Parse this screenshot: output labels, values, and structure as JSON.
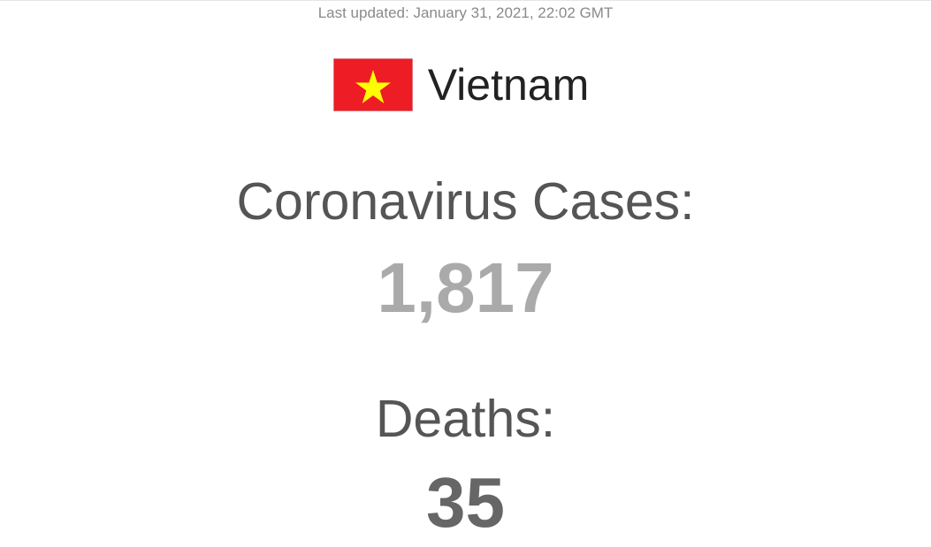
{
  "header": {
    "last_updated": "Last updated: January 31, 2021, 22:02 GMT"
  },
  "country": {
    "name": "Vietnam",
    "flag_icon": "vietnam-flag-icon",
    "flag_colors": {
      "field": "#DA251D",
      "star": "#FFFF00"
    }
  },
  "stats": {
    "cases_label": "Coronavirus Cases:",
    "cases_value": "1,817",
    "cases_color": "#AAAAAA",
    "deaths_label": "Deaths:",
    "deaths_value": "35",
    "deaths_color": "#666666"
  }
}
